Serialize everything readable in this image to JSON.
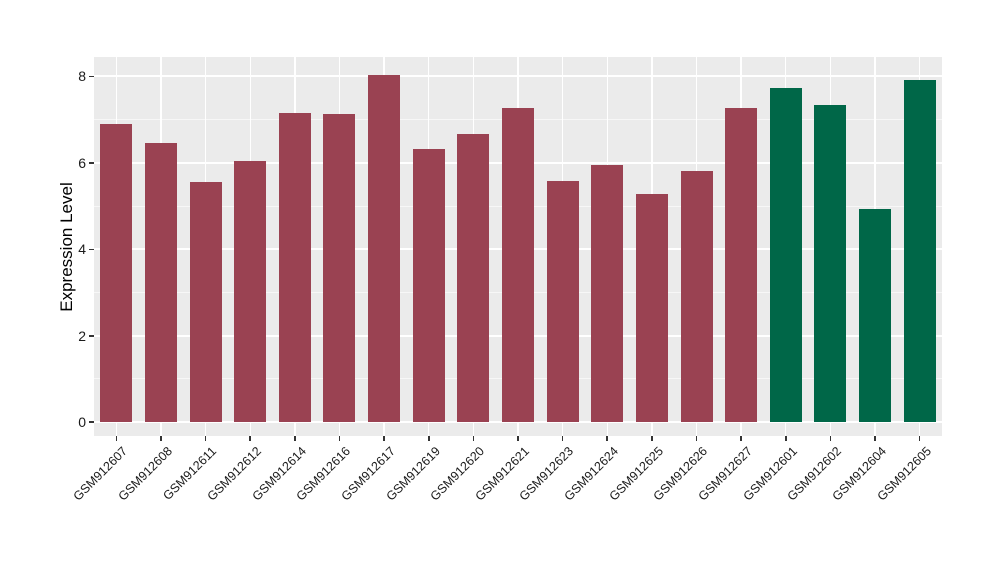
{
  "chart_data": {
    "type": "bar",
    "title": "",
    "xlabel": "",
    "ylabel": "Expression Level",
    "categories": [
      "GSM912607",
      "GSM912608",
      "GSM912611",
      "GSM912612",
      "GSM912614",
      "GSM912616",
      "GSM912617",
      "GSM912619",
      "GSM912620",
      "GSM912621",
      "GSM912623",
      "GSM912624",
      "GSM912625",
      "GSM912626",
      "GSM912627",
      "GSM912601",
      "GSM912602",
      "GSM912604",
      "GSM912605"
    ],
    "values": [
      6.89,
      6.45,
      5.55,
      6.04,
      7.16,
      7.13,
      8.03,
      6.31,
      6.66,
      7.27,
      5.58,
      5.95,
      5.29,
      5.81,
      7.26,
      7.73,
      7.33,
      4.93,
      7.92
    ],
    "bar_color_keys": [
      "maroon",
      "maroon",
      "maroon",
      "maroon",
      "maroon",
      "maroon",
      "maroon",
      "maroon",
      "maroon",
      "maroon",
      "maroon",
      "maroon",
      "maroon",
      "maroon",
      "maroon",
      "green",
      "green",
      "green",
      "green"
    ],
    "colors": {
      "maroon": "#9A4252",
      "green": "#006748"
    },
    "panel_bg": "#EBEBEB",
    "grid_color": "#FFFFFF",
    "tick_color": "#333333",
    "y_ticks": [
      0,
      2,
      4,
      6,
      8
    ],
    "y_minor_ticks": [
      1,
      3,
      5,
      7
    ],
    "ylim": [
      -0.32,
      8.45
    ],
    "grid": "major and minor horizontal white lines, vertical white line at each category",
    "legend_position": "none"
  }
}
